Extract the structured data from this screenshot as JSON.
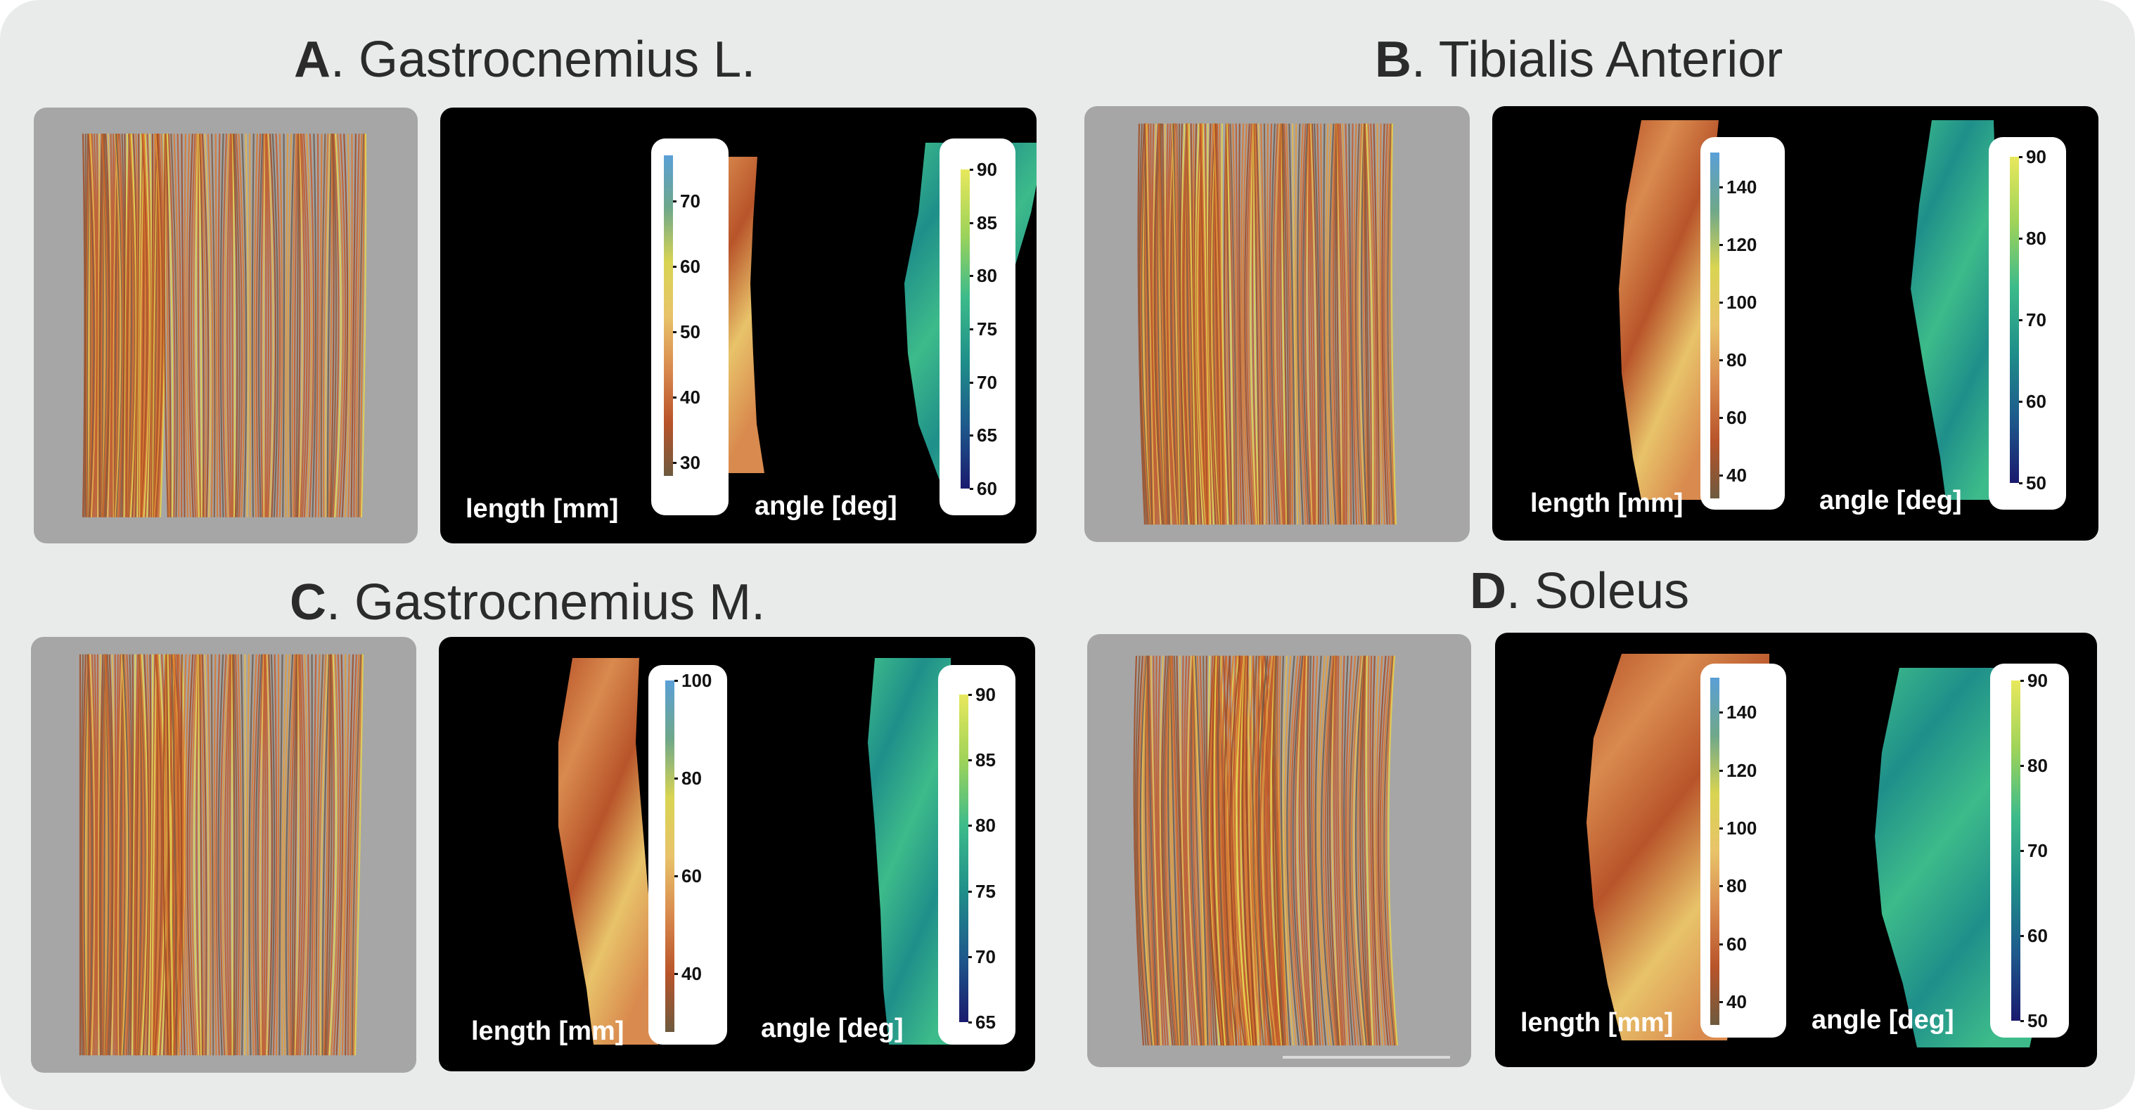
{
  "colors": {
    "frame": "#e9ebea",
    "render_background": "#a6a6a6",
    "map_background": "#000000",
    "length_colormap": [
      "#6e5a3e",
      "#b8542a",
      "#d98a4e",
      "#e8c36a",
      "#d9d452",
      "#6fa88a",
      "#5a9fd6"
    ],
    "angle_colormap": [
      "#1a1a6e",
      "#1e5a8c",
      "#1f8f8a",
      "#3dbb8a",
      "#9fd35a",
      "#e8e85c"
    ],
    "fiber_colors": [
      "#a04a22",
      "#c25a2a",
      "#d9782f",
      "#e39a3a",
      "#e8b84a",
      "#e5d34c",
      "#8a5a3a",
      "#6e5a4a"
    ]
  },
  "panels": [
    {
      "letter": "A",
      "name": ". Gastrocnemius L.",
      "length_label": "length [mm]",
      "angle_label": "angle [deg]",
      "length_colorbar": {
        "min": 28,
        "max": 77,
        "ticks": [
          "70",
          "60",
          "50",
          "40",
          "30"
        ],
        "tick_values": [
          70,
          60,
          50,
          40,
          30
        ]
      },
      "angle_colorbar": {
        "min": 60,
        "max": 90,
        "ticks": [
          "90",
          "85",
          "80",
          "75",
          "70",
          "65",
          "60"
        ],
        "tick_values": [
          90,
          85,
          80,
          75,
          70,
          65,
          60
        ]
      }
    },
    {
      "letter": "B",
      "name": ". Tibialis Anterior",
      "length_label": "length [mm]",
      "angle_label": "angle [deg]",
      "length_colorbar": {
        "min": 32,
        "max": 152,
        "ticks": [
          "140",
          "120",
          "100",
          "80",
          "60",
          "40"
        ],
        "tick_values": [
          140,
          120,
          100,
          80,
          60,
          40
        ]
      },
      "angle_colorbar": {
        "min": 50,
        "max": 90,
        "ticks": [
          "90",
          "80",
          "70",
          "60",
          "50"
        ],
        "tick_values": [
          90,
          80,
          70,
          60,
          50
        ]
      }
    },
    {
      "letter": "C",
      "name": ". Gastrocnemius M.",
      "length_label": "length [mm]",
      "angle_label": "angle [deg]",
      "length_colorbar": {
        "min": 28,
        "max": 100,
        "ticks": [
          "100",
          "80",
          "60",
          "40"
        ],
        "tick_values": [
          100,
          80,
          60,
          40
        ]
      },
      "angle_colorbar": {
        "min": 65,
        "max": 90,
        "ticks": [
          "90",
          "85",
          "80",
          "75",
          "70",
          "65"
        ],
        "tick_values": [
          90,
          85,
          80,
          75,
          70,
          65
        ]
      }
    },
    {
      "letter": "D",
      "name": ". Soleus",
      "length_label": "length [mm]",
      "angle_label": "angle [deg]",
      "length_colorbar": {
        "min": 32,
        "max": 152,
        "ticks": [
          "140",
          "120",
          "100",
          "80",
          "60",
          "40"
        ],
        "tick_values": [
          140,
          120,
          100,
          80,
          60,
          40
        ]
      },
      "angle_colorbar": {
        "min": 50,
        "max": 90,
        "ticks": [
          "90",
          "80",
          "70",
          "60",
          "50"
        ],
        "tick_values": [
          90,
          80,
          70,
          60,
          50
        ]
      }
    }
  ]
}
